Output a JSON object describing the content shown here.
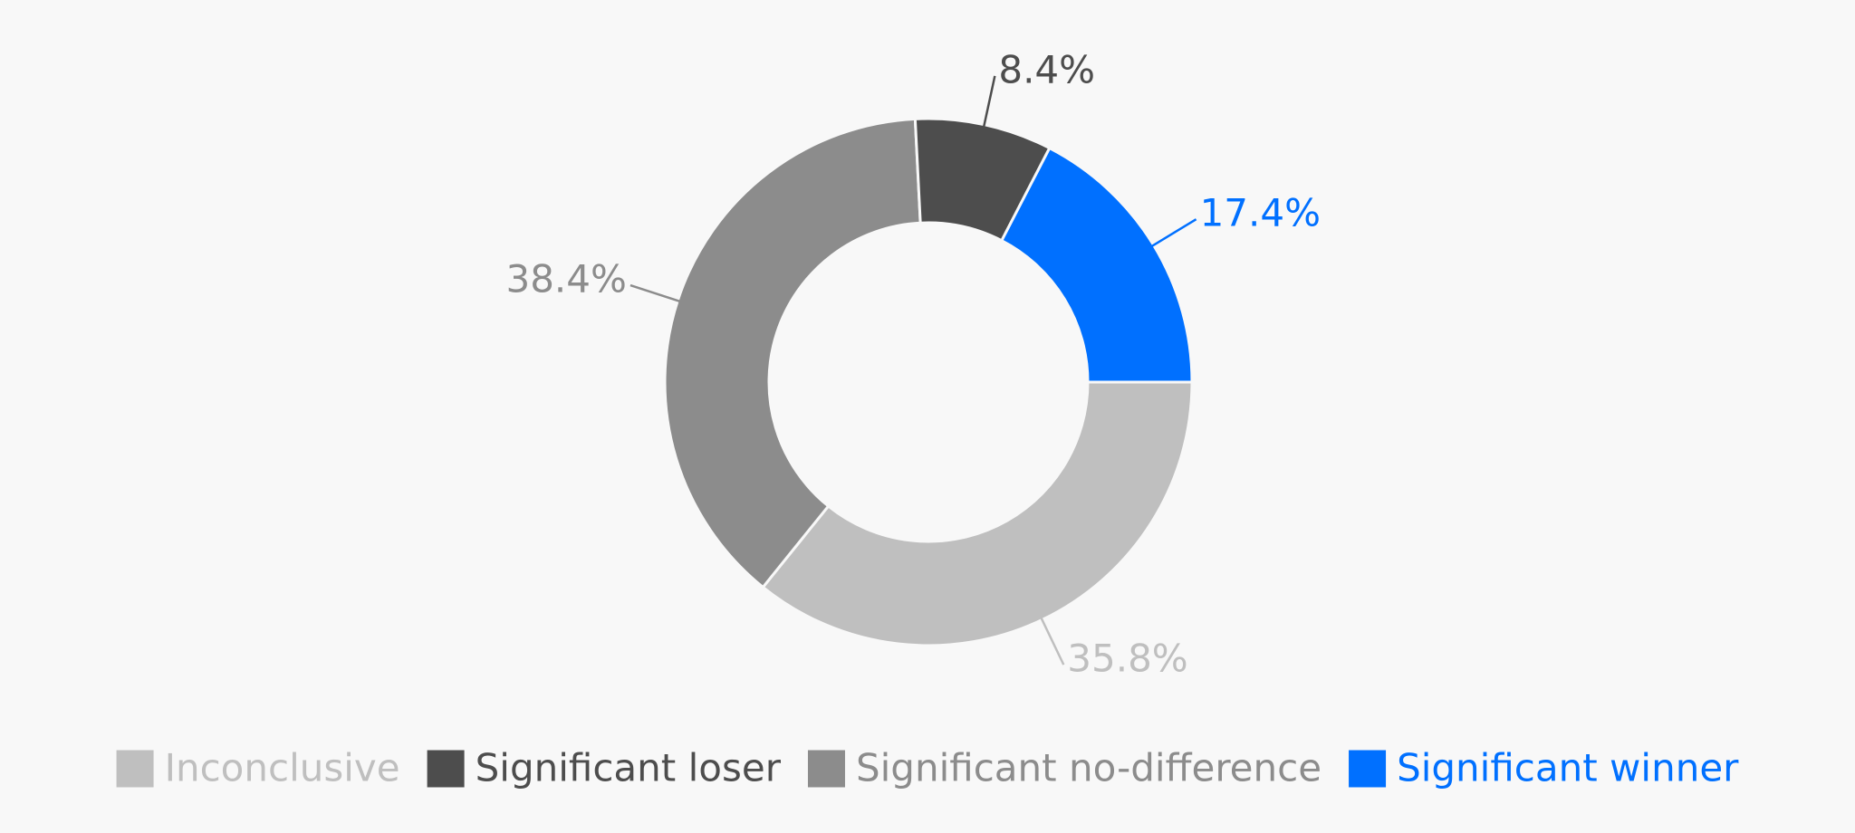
{
  "chart_data": {
    "type": "donut",
    "values": [
      35.8,
      38.4,
      8.4,
      17.4
    ],
    "value_labels": [
      "35.8%",
      "38.4%",
      "8.4%",
      "17.4%"
    ],
    "colors": [
      "#bfbfbf",
      "#8c8c8c",
      "#4d4d4d",
      "#0070ff"
    ],
    "legend": [
      {
        "name": "Inconclusive",
        "color": "#bfbfbf"
      },
      {
        "name": "Significant loser",
        "color": "#4d4d4d"
      },
      {
        "name": "Significant no-difference",
        "color": "#8c8c8c"
      },
      {
        "name": "Significant winner",
        "color": "#0070ff"
      }
    ]
  }
}
